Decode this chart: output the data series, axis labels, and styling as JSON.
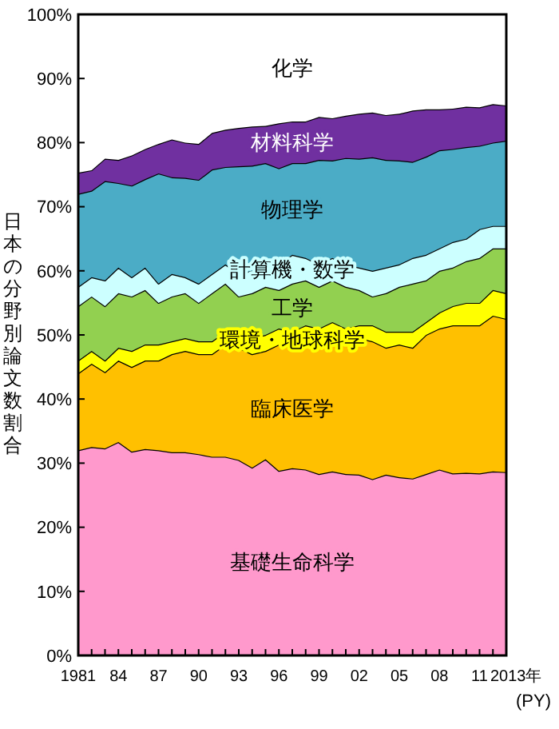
{
  "chart_data": {
    "type": "area",
    "stacked": true,
    "ylabel": "日本の分野別論文数割合",
    "xlabel": "(PY)",
    "grid": false,
    "x": [
      1981,
      1982,
      1983,
      1984,
      1985,
      1986,
      1987,
      1988,
      1989,
      1990,
      1991,
      1992,
      1993,
      1994,
      1995,
      1996,
      1997,
      1998,
      1999,
      2000,
      2001,
      2002,
      2003,
      2004,
      2005,
      2006,
      2007,
      2008,
      2009,
      2010,
      2011,
      2012,
      2013
    ],
    "xlim": [
      1981,
      2013
    ],
    "xticks": [
      1981,
      {
        "value": 1982,
        "label": null
      },
      {
        "value": 1983,
        "label": null
      },
      {
        "value": 1984,
        "label": "84"
      },
      {
        "value": 1985,
        "label": null
      },
      {
        "value": 1986,
        "label": null
      },
      {
        "value": 1987,
        "label": "87"
      },
      {
        "value": 1988,
        "label": null
      },
      {
        "value": 1989,
        "label": null
      },
      {
        "value": 1990,
        "label": "90"
      },
      {
        "value": 1991,
        "label": null
      },
      {
        "value": 1992,
        "label": null
      },
      {
        "value": 1993,
        "label": "93"
      },
      {
        "value": 1994,
        "label": null
      },
      {
        "value": 1995,
        "label": null
      },
      {
        "value": 1996,
        "label": "96"
      },
      {
        "value": 1997,
        "label": null
      },
      {
        "value": 1998,
        "label": null
      },
      {
        "value": 1999,
        "label": "99"
      },
      {
        "value": 2000,
        "label": null
      },
      {
        "value": 2001,
        "label": null
      },
      {
        "value": 2002,
        "label": "02"
      },
      {
        "value": 2003,
        "label": null
      },
      {
        "value": 2004,
        "label": null
      },
      {
        "value": 2005,
        "label": "05"
      },
      {
        "value": 2006,
        "label": null
      },
      {
        "value": 2007,
        "label": null
      },
      {
        "value": 2008,
        "label": "08"
      },
      {
        "value": 2009,
        "label": null
      },
      {
        "value": 2010,
        "label": null
      },
      {
        "value": 2011,
        "label": "11"
      },
      {
        "value": 2012,
        "label": null
      },
      {
        "value": 2013,
        "label": "2013年"
      }
    ],
    "ylim": [
      0,
      100
    ],
    "yticks": [
      {
        "value": 0,
        "label": "0%"
      },
      {
        "value": 10,
        "label": "10%"
      },
      {
        "value": 20,
        "label": "20%"
      },
      {
        "value": 30,
        "label": "30%"
      },
      {
        "value": 40,
        "label": "40%"
      },
      {
        "value": 50,
        "label": "50%"
      },
      {
        "value": 60,
        "label": "60%"
      },
      {
        "value": 70,
        "label": "70%"
      },
      {
        "value": 80,
        "label": "80%"
      },
      {
        "value": 90,
        "label": "90%"
      },
      {
        "value": 100,
        "label": "100%"
      }
    ],
    "series": [
      {
        "name": "基礎生命科学",
        "color": "#ff99cc",
        "values": [
          32,
          32.5,
          32.3,
          33.3,
          31.8,
          32.2,
          32,
          31.7,
          31.7,
          31.4,
          31,
          31,
          30.5,
          29.3,
          30.6,
          28.8,
          29.2,
          29,
          28.3,
          28.7,
          28.3,
          28.2,
          27.5,
          28.2,
          27.8,
          27.6,
          28.3,
          29,
          28.4,
          28.5,
          28.4,
          28.7,
          28.6
        ]
      },
      {
        "name": "臨床医学",
        "color": "#ffc000",
        "values": [
          12,
          13,
          11.9,
          12.7,
          13.2,
          13.8,
          14,
          15.3,
          15.8,
          15.6,
          16,
          17.5,
          17.5,
          17.7,
          16.9,
          19.7,
          18.8,
          19,
          20.2,
          20.8,
          20.2,
          21.3,
          21.5,
          19.8,
          20.7,
          20.4,
          21.7,
          22,
          23.1,
          23,
          23.1,
          24.3,
          23.9
        ]
      },
      {
        "name": "環境・地球科学",
        "color": "#ffff00",
        "values": [
          2,
          2,
          1.8,
          2,
          2.5,
          2.5,
          2.5,
          2,
          2,
          2,
          2,
          2,
          2,
          2.5,
          2.5,
          2.5,
          2.5,
          3.5,
          2.5,
          2.5,
          2.5,
          2,
          2.5,
          2.5,
          2,
          2.5,
          2,
          2.5,
          3,
          3.5,
          3.5,
          4,
          4
        ]
      },
      {
        "name": "工学",
        "color": "#92d050",
        "values": [
          8.5,
          8.5,
          8.5,
          8.5,
          8.5,
          8.5,
          6.5,
          7,
          7,
          6,
          7.5,
          7.5,
          6,
          7,
          7.5,
          6,
          7.5,
          7,
          6.5,
          6.5,
          6.5,
          5.5,
          4.5,
          6,
          7,
          7.5,
          6.5,
          6.5,
          6,
          6.5,
          7,
          6.5,
          7
        ]
      },
      {
        "name": "計算機・数学",
        "color": "#ccffff",
        "values": [
          3,
          3,
          4,
          4,
          3,
          3.5,
          3,
          3.5,
          2.5,
          3,
          3,
          3,
          3.5,
          3.5,
          3.5,
          4,
          4.5,
          3.5,
          3.5,
          3.5,
          3.5,
          3.5,
          4,
          4,
          3.5,
          4,
          4,
          3.5,
          4,
          3.5,
          4.5,
          3.5,
          3.5
        ]
      },
      {
        "name": "物理学",
        "color": "#4bacc6",
        "values": [
          14.5,
          13.5,
          15.5,
          13.2,
          14.3,
          13.8,
          17.2,
          15.1,
          15.5,
          16.2,
          16.3,
          15.2,
          16.8,
          16.4,
          15.8,
          15,
          14.3,
          14.8,
          16.3,
          15.2,
          16.6,
          17,
          17.7,
          16.8,
          16.2,
          15,
          15.3,
          15.3,
          14.5,
          14.3,
          13,
          13,
          13.3
        ]
      },
      {
        "name": "材料科学",
        "color": "#7030a0",
        "values": [
          3.3,
          3.2,
          3.5,
          3.6,
          4.7,
          4.7,
          4.6,
          5.9,
          5.5,
          5.6,
          5.7,
          5.8,
          6,
          6.1,
          5.8,
          7,
          6.5,
          6.5,
          6.7,
          6.6,
          6.6,
          7,
          7,
          7,
          7.3,
          8,
          7.4,
          6.4,
          6.3,
          6.3,
          6,
          6,
          5.5
        ]
      },
      {
        "name": "化学",
        "color": "#ffffff",
        "values": [
          24.7,
          24.3,
          22.5,
          22.7,
          22,
          21,
          20.2,
          19.5,
          20,
          20.2,
          18.5,
          18,
          17.7,
          17.5,
          17.4,
          17,
          16.7,
          16.7,
          16,
          16.2,
          15.8,
          15.5,
          15.3,
          15.7,
          15.5,
          15,
          14.8,
          14.8,
          14.7,
          14.4,
          14.5,
          14,
          14.2
        ]
      }
    ]
  }
}
